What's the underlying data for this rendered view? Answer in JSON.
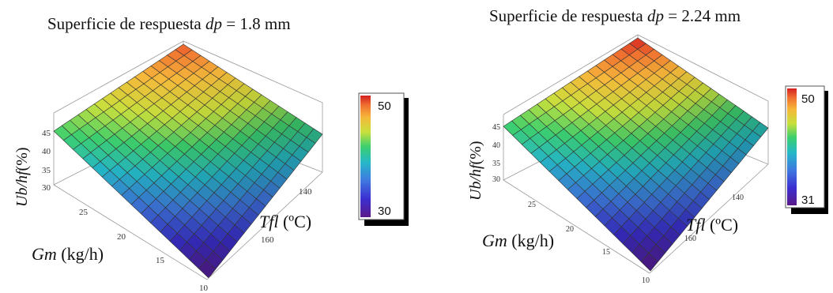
{
  "chart_data": [
    {
      "type": "surface3d",
      "title_prefix": "Superficie de respuesta ",
      "title_var": "dp",
      "title_eq": " = 1.8 mm",
      "axis_z": {
        "var": "Ub/hf",
        "unit": "(%)"
      },
      "axis_y": {
        "var": "Gm",
        "unit": " (kg/h)"
      },
      "axis_x": {
        "var": "Tfl",
        "unit": " (ºC)"
      },
      "z_ticks": [
        "45",
        "40",
        "35",
        "30"
      ],
      "y_ticks": [
        "25",
        "20",
        "15",
        "10"
      ],
      "x_ticks": [
        "140",
        "160"
      ],
      "colorbar": {
        "max_label": "50",
        "min_label": "30",
        "max": 50,
        "min": 30
      },
      "corner_values": {
        "back": 49,
        "left": 42,
        "right": 40.5,
        "front": 30
      },
      "grid_lines": 17
    },
    {
      "type": "surface3d",
      "title_prefix": "Superficie de respuesta ",
      "title_var": "dp",
      "title_eq": " = 2.24 mm",
      "axis_z": {
        "var": "Ub/hf",
        "unit": "(%)"
      },
      "axis_y": {
        "var": "Gm",
        "unit": " (kg/h)"
      },
      "axis_x": {
        "var": "Tfl",
        "unit": " (ºC)"
      },
      "z_ticks": [
        "45",
        "40",
        "35",
        "30"
      ],
      "y_ticks": [
        "25",
        "20",
        "15",
        "10"
      ],
      "x_ticks": [
        "140",
        "160"
      ],
      "colorbar": {
        "max_label": "50",
        "min_label": "31",
        "max": 50,
        "min": 31
      },
      "corner_values": {
        "back": 50,
        "left": 42,
        "right": 40,
        "front": 31
      },
      "grid_lines": 17
    }
  ]
}
